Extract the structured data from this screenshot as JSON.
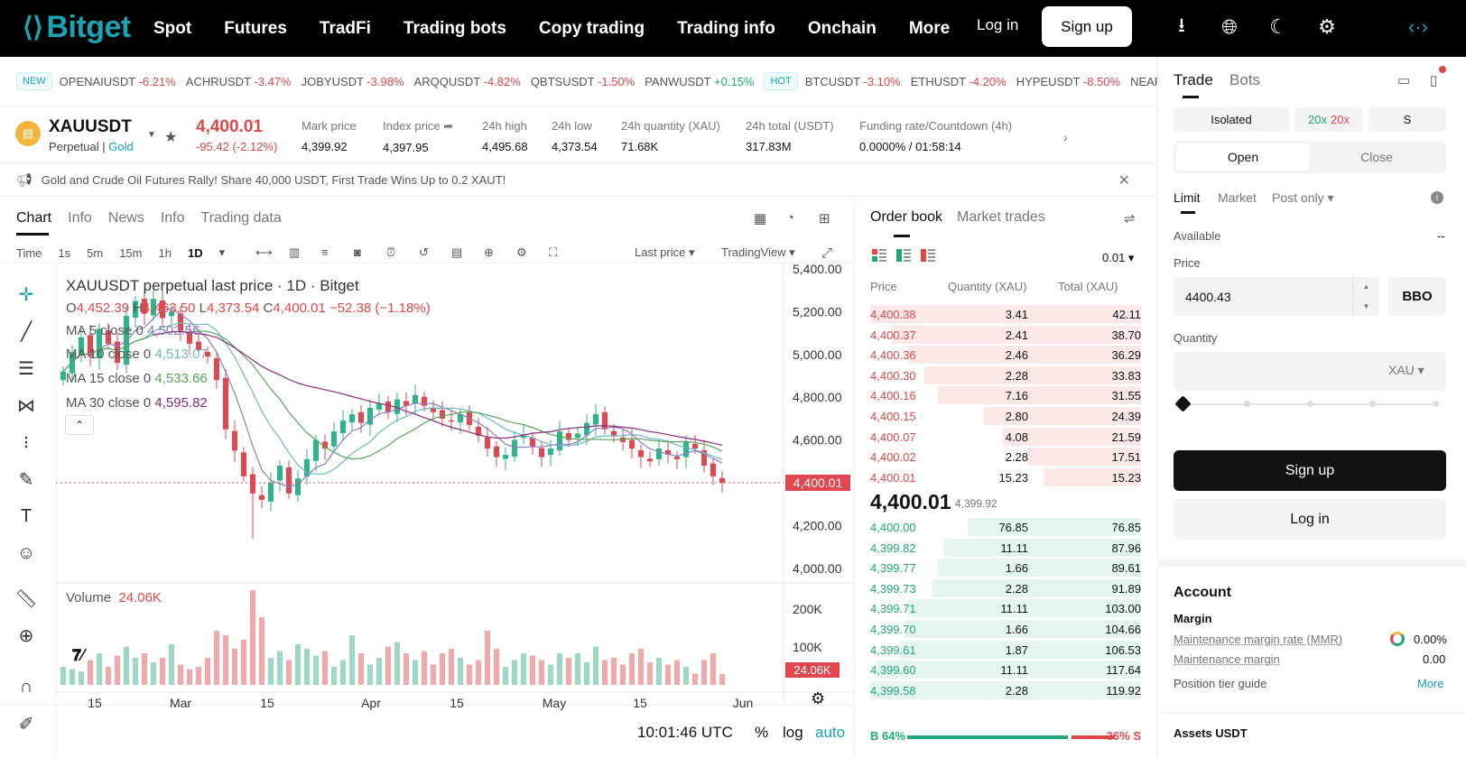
{
  "nav": {
    "logo": "Bitget",
    "menu": [
      "Spot",
      "Futures",
      "TradFi",
      "Trading bots",
      "Copy trading",
      "Trading info",
      "Onchain",
      "More"
    ],
    "login": "Log in",
    "signup": "Sign up",
    "icons": [
      "download-icon",
      "globe-icon",
      "moon-icon",
      "gear-icon",
      "extension-icon"
    ]
  },
  "ticker": {
    "new_badge": "NEW",
    "hot_badge": "HOT",
    "new_items": [
      {
        "sym": "OPENAIUSDT",
        "chg": "-6.21%",
        "dir": "neg"
      },
      {
        "sym": "ACHRUSDT",
        "chg": "-3.47%",
        "dir": "neg"
      },
      {
        "sym": "JOBYUSDT",
        "chg": "-3.98%",
        "dir": "neg"
      },
      {
        "sym": "ARQQUSDT",
        "chg": "-4.82%",
        "dir": "neg"
      },
      {
        "sym": "QBTSUSDT",
        "chg": "-1.50%",
        "dir": "neg"
      },
      {
        "sym": "PANWUSDT",
        "chg": "+0.15%",
        "dir": "pos"
      }
    ],
    "hot_items": [
      {
        "sym": "BTCUSDT",
        "chg": "-3.10%",
        "dir": "neg"
      },
      {
        "sym": "ETHUSDT",
        "chg": "-4.20%",
        "dir": "neg"
      },
      {
        "sym": "HYPEUSDT",
        "chg": "-8.50%",
        "dir": "neg"
      },
      {
        "sym": "NEARUS",
        "chg": "",
        "dir": "neg"
      }
    ]
  },
  "symbol": {
    "name": "XAUUSDT",
    "type": "Perpetual",
    "tag": "Gold",
    "price": "4,400.01",
    "change": "-95.42 (-2.12%)",
    "stats": [
      {
        "label": "Mark price",
        "value": "4,399.92"
      },
      {
        "label": "Index price",
        "value": "4,397.95"
      },
      {
        "label": "24h high",
        "value": "4,495.68"
      },
      {
        "label": "24h low",
        "value": "4,373.54"
      },
      {
        "label": "24h quantity (XAU)",
        "value": "71.68K"
      },
      {
        "label": "24h total (USDT)",
        "value": "317.83M"
      },
      {
        "label": "Funding rate/Countdown (4h)",
        "value": "0.0000% / 01:58:14"
      }
    ]
  },
  "announcement": "Gold and Crude Oil Futures Rally! Share 40,000 USDT, First Trade Wins Up to 0.2 XAUT!",
  "chart_tabs": [
    "Chart",
    "Info",
    "News",
    "Info",
    "Trading data"
  ],
  "timeframes": [
    "Time",
    "1s",
    "5m",
    "15m",
    "1h",
    "1D"
  ],
  "timeframe_active": "1D",
  "chart_toolbar": {
    "last_price": "Last price",
    "tradingview": "TradingView"
  },
  "chart_header": {
    "title": "XAUUSDT perpetual last price · 1D · Bitget",
    "o": "4,452.39",
    "h": "4,463.50",
    "l": "4,373.54",
    "c": "4,400.01",
    "chg": "−52.38 (−1.18%)",
    "ma": [
      {
        "label": "MA 5 close 0",
        "value": "4,502.56",
        "color": "#8a7dbf"
      },
      {
        "label": "MA 10 close 0",
        "value": "4,513.07",
        "color": "#6fb6c8"
      },
      {
        "label": "MA 15 close 0",
        "value": "4,533.66",
        "color": "#5aa55a"
      },
      {
        "label": "MA 30 close 0",
        "value": "4,595.82",
        "color": "#8b2a78"
      }
    ],
    "volume_label": "Volume",
    "volume_value": "24.06K"
  },
  "chart_footer": {
    "time": "10:01:46 UTC",
    "pct": "%",
    "log": "log",
    "auto": "auto"
  },
  "chart_data": {
    "type": "candlestick",
    "title": "XAUUSDT perpetual last price · 1D · Bitget",
    "x_ticks": [
      "15",
      "Mar",
      "15",
      "Apr",
      "15",
      "May",
      "15",
      "Jun"
    ],
    "y_ticks": [
      4000,
      4200,
      4400,
      4600,
      4800,
      5000,
      5200,
      5400
    ],
    "y_tick_labels": [
      "4,000.00",
      "4,200.00",
      "4,400.00",
      "4,600.00",
      "4,800.00",
      "5,000.00",
      "5,200.00",
      "5,400.00"
    ],
    "last_price": 4400.01,
    "last_price_label": "4,400.01",
    "volume_ticks": [
      "200K",
      "100K"
    ],
    "volume_last": "24.06K",
    "close": [
      4920,
      5010,
      5080,
      4990,
      5120,
      5050,
      4960,
      5180,
      5250,
      5190,
      5260,
      5170,
      5200,
      5110,
      5050,
      5020,
      4990,
      4880,
      4650,
      4550,
      4430,
      4350,
      4320,
      4400,
      4480,
      4350,
      4420,
      4510,
      4600,
      4560,
      4640,
      4690,
      4720,
      4680,
      4750,
      4770,
      4730,
      4790,
      4760,
      4810,
      4760,
      4730,
      4700,
      4690,
      4720,
      4670,
      4620,
      4560,
      4520,
      4530,
      4600,
      4620,
      4570,
      4520,
      4560,
      4640,
      4600,
      4630,
      4680,
      4720,
      4650,
      4620,
      4590,
      4560,
      4520,
      4500,
      4560,
      4530,
      4510,
      4590,
      4560,
      4480,
      4430,
      4400
    ],
    "volume": [
      40,
      35,
      30,
      55,
      70,
      40,
      65,
      85,
      60,
      70,
      50,
      60,
      90,
      45,
      35,
      40,
      60,
      120,
      110,
      80,
      100,
      210,
      150,
      60,
      75,
      55,
      90,
      80,
      65,
      75,
      40,
      55,
      110,
      70,
      45,
      60,
      85,
      95,
      70,
      55,
      75,
      45,
      70,
      80,
      60,
      45,
      55,
      120,
      80,
      40,
      55,
      70,
      65,
      55,
      45,
      70,
      60,
      70,
      50,
      85,
      55,
      60,
      45,
      70,
      80,
      50,
      60,
      45,
      55,
      40,
      25,
      55,
      70,
      24
    ]
  },
  "orderbook": {
    "tabs": [
      "Order book",
      "Market trades"
    ],
    "tick": "0.01",
    "headers": {
      "price": "Price",
      "qty": "Quantity (XAU)",
      "total": "Total (XAU)"
    },
    "asks": [
      {
        "price": "4,400.38",
        "qty": "3.41",
        "total": "42.11",
        "depth": 1.0
      },
      {
        "price": "4,400.37",
        "qty": "2.41",
        "total": "38.70",
        "depth": 0.92
      },
      {
        "price": "4,400.36",
        "qty": "2.46",
        "total": "36.29",
        "depth": 0.86
      },
      {
        "price": "4,400.30",
        "qty": "2.28",
        "total": "33.83",
        "depth": 0.8
      },
      {
        "price": "4,400.16",
        "qty": "7.16",
        "total": "31.55",
        "depth": 0.75
      },
      {
        "price": "4,400.15",
        "qty": "2.80",
        "total": "24.39",
        "depth": 0.58
      },
      {
        "price": "4,400.07",
        "qty": "4.08",
        "total": "21.59",
        "depth": 0.51
      },
      {
        "price": "4,400.02",
        "qty": "2.28",
        "total": "17.51",
        "depth": 0.42
      },
      {
        "price": "4,400.01",
        "qty": "15.23",
        "total": "15.23",
        "depth": 0.36
      }
    ],
    "mid_price": "4,400.01",
    "mid_sub": "4,399.92",
    "bids": [
      {
        "price": "4,400.00",
        "qty": "76.85",
        "total": "76.85",
        "depth": 0.64
      },
      {
        "price": "4,399.82",
        "qty": "11.11",
        "total": "87.96",
        "depth": 0.73
      },
      {
        "price": "4,399.77",
        "qty": "1.66",
        "total": "89.61",
        "depth": 0.75
      },
      {
        "price": "4,399.73",
        "qty": "2.28",
        "total": "91.89",
        "depth": 0.77
      },
      {
        "price": "4,399.71",
        "qty": "11.11",
        "total": "103.00",
        "depth": 0.86
      },
      {
        "price": "4,399.70",
        "qty": "1.66",
        "total": "104.66",
        "depth": 0.87
      },
      {
        "price": "4,399.61",
        "qty": "1.87",
        "total": "106.53",
        "depth": 0.89
      },
      {
        "price": "4,399.60",
        "qty": "11.11",
        "total": "117.64",
        "depth": 0.98
      },
      {
        "price": "4,399.58",
        "qty": "2.28",
        "total": "119.92",
        "depth": 1.0
      }
    ],
    "buy_ratio": "B 64%",
    "sell_ratio": "36% S"
  },
  "trade": {
    "tabs": [
      "Trade",
      "Bots"
    ],
    "margin_mode": "Isolated",
    "lev_long": "20x",
    "lev_short": "20x",
    "position_mode": "S",
    "open": "Open",
    "close": "Close",
    "order_types": [
      "Limit",
      "Market",
      "Post only"
    ],
    "available_label": "Available",
    "available_value": "--",
    "price_label": "Price",
    "price_value": "4400.43",
    "bbo": "BBO",
    "qty_label": "Quantity",
    "qty_unit": "XAU",
    "signup": "Sign up",
    "login": "Log in",
    "account_title": "Account",
    "margin_title": "Margin",
    "mmr_label": "Maintenance margin rate (MMR)",
    "mmr_value": "0.00%",
    "mm_label": "Maintenance margin",
    "mm_value": "0.00",
    "tier_label": "Position tier guide",
    "more": "More",
    "assets": "Assets USDT"
  }
}
